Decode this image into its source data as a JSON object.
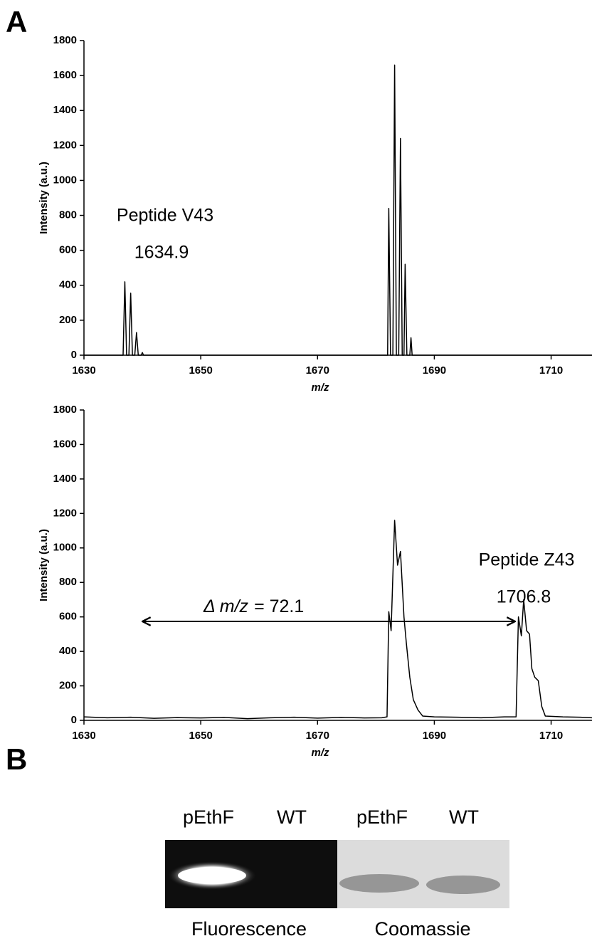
{
  "panels": {
    "a": "A",
    "b": "B"
  },
  "chart_data": [
    {
      "type": "line",
      "xlabel": "m/z",
      "ylabel": "Intensity (a.u.)",
      "annotations": [
        "Peptide V43",
        "1634.9"
      ],
      "x": [
        1630,
        1636.7,
        1637.0,
        1637.3,
        1637.7,
        1638.0,
        1638.3,
        1638.7,
        1639.0,
        1639.3,
        1639.8,
        1640.0,
        1640.2,
        1682.0,
        1682.2,
        1682.5,
        1682.9,
        1683.2,
        1683.5,
        1683.9,
        1684.2,
        1684.5,
        1684.8,
        1685.0,
        1685.3,
        1685.8,
        1686.0,
        1686.2,
        1717
      ],
      "values": [
        0,
        0,
        420,
        0,
        0,
        355,
        0,
        0,
        130,
        0,
        0,
        15,
        0,
        0,
        840,
        0,
        0,
        1660,
        0,
        0,
        1240,
        0,
        0,
        520,
        0,
        0,
        100,
        0,
        0
      ],
      "color": "#000000",
      "xlim": [
        1630,
        1717
      ],
      "xticks": [
        1630,
        1650,
        1670,
        1690,
        1710
      ],
      "ylim": [
        0,
        1800
      ],
      "yticks": [
        0,
        200,
        400,
        600,
        800,
        1000,
        1200,
        1400,
        1600,
        1800
      ]
    },
    {
      "type": "line",
      "xlabel": "m/z",
      "ylabel": "Intensity (a.u.)",
      "annotations": [
        "Peptide Z43",
        "1706.8"
      ],
      "delta_label": {
        "symbol": "Δ m/z",
        "value": "= 72.1"
      },
      "x": [
        1630,
        1634,
        1638,
        1642,
        1646,
        1650,
        1654,
        1658,
        1662,
        1666,
        1670,
        1674,
        1678,
        1681,
        1681.9,
        1682.2,
        1682.6,
        1683.2,
        1683.7,
        1684.2,
        1684.8,
        1685.2,
        1685.8,
        1686.4,
        1687.2,
        1688,
        1690,
        1694,
        1698,
        1702,
        1704.0,
        1704.4,
        1704.9,
        1705.3,
        1705.8,
        1706.3,
        1706.7,
        1707.2,
        1707.8,
        1708.4,
        1709,
        1712,
        1715,
        1717
      ],
      "values": [
        20,
        15,
        18,
        12,
        16,
        14,
        17,
        10,
        15,
        18,
        13,
        17,
        14,
        15,
        20,
        630,
        520,
        1160,
        900,
        980,
        600,
        450,
        250,
        120,
        60,
        25,
        20,
        18,
        15,
        20,
        20,
        600,
        490,
        700,
        520,
        500,
        300,
        250,
        230,
        80,
        25,
        20,
        18,
        15
      ],
      "color": "#000000",
      "xlim": [
        1630,
        1717
      ],
      "xticks": [
        1630,
        1650,
        1670,
        1690,
        1710
      ],
      "ylim": [
        0,
        1800
      ],
      "yticks": [
        0,
        200,
        400,
        600,
        800,
        1000,
        1200,
        1400,
        1600,
        1800
      ]
    }
  ],
  "gel": {
    "lanes": [
      "pEthF",
      "WT",
      "pEthF",
      "WT"
    ],
    "captions": [
      "Fluorescence",
      "Coomassie"
    ]
  }
}
